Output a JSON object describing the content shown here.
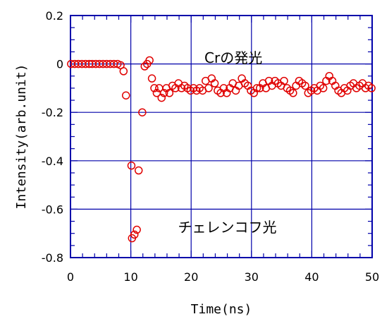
{
  "chart_data": {
    "type": "scatter",
    "xlabel": "Time(ns)",
    "ylabel": "Intensity(arb.unit)",
    "xlim": [
      0,
      50
    ],
    "ylim": [
      -0.8,
      0.2
    ],
    "x_ticks": [
      "0",
      "10",
      "20",
      "30",
      "40",
      "50"
    ],
    "y_ticks": [
      "0.2",
      "0",
      "-0.2",
      "-0.4",
      "-0.6",
      "-0.8"
    ],
    "grid": true,
    "colors": {
      "frame": "#0000aa",
      "points": "#e00000"
    },
    "annotations": [
      {
        "text": "Crの発光",
        "x": 27,
        "y": 0.005
      },
      {
        "text": "チェレンコフ光",
        "x": 26,
        "y": -0.695
      }
    ],
    "series": [
      {
        "x": [
          0.1,
          0.7,
          1.3,
          1.9,
          2.5,
          3.1,
          3.6,
          4.2,
          4.8,
          5.4,
          6.0,
          6.6,
          7.2,
          7.8,
          8.3,
          8.8,
          9.2,
          10.1,
          10.2,
          10.6,
          11.0,
          11.3,
          11.9,
          12.3,
          12.7,
          13.1,
          13.5,
          13.9,
          14.3,
          14.7,
          15.1,
          15.5,
          15.9,
          16.4,
          16.9,
          17.4,
          17.9,
          18.4,
          18.9,
          19.4,
          19.9,
          20.4,
          20.9,
          21.4,
          21.9,
          22.4,
          22.9,
          23.4,
          23.9,
          24.4,
          24.9,
          25.4,
          25.9,
          26.4,
          26.9,
          27.4,
          27.9,
          28.4,
          28.9,
          29.4,
          29.9,
          30.4,
          30.9,
          31.4,
          31.9,
          32.4,
          32.9,
          33.4,
          33.9,
          34.4,
          34.9,
          35.4,
          35.9,
          36.4,
          36.9,
          37.4,
          37.9,
          38.4,
          38.9,
          39.4,
          39.9,
          40.4,
          40.9,
          41.4,
          41.9,
          42.4,
          42.9,
          43.4,
          43.9,
          44.4,
          44.9,
          45.4,
          45.9,
          46.4,
          46.9,
          47.4,
          47.9,
          48.4,
          48.9,
          49.4,
          49.9
        ],
        "values": [
          0,
          0,
          0,
          0,
          0,
          0,
          0,
          0,
          0,
          0,
          0,
          0,
          0,
          0,
          -0.005,
          -0.03,
          -0.13,
          -0.42,
          -0.72,
          -0.705,
          -0.685,
          -0.44,
          -0.2,
          -0.01,
          0,
          0.015,
          -0.06,
          -0.1,
          -0.12,
          -0.1,
          -0.14,
          -0.12,
          -0.1,
          -0.12,
          -0.09,
          -0.1,
          -0.08,
          -0.1,
          -0.09,
          -0.1,
          -0.11,
          -0.1,
          -0.11,
          -0.1,
          -0.11,
          -0.07,
          -0.1,
          -0.06,
          -0.08,
          -0.11,
          -0.12,
          -0.1,
          -0.12,
          -0.1,
          -0.08,
          -0.11,
          -0.09,
          -0.06,
          -0.08,
          -0.09,
          -0.11,
          -0.12,
          -0.1,
          -0.1,
          -0.08,
          -0.1,
          -0.07,
          -0.09,
          -0.07,
          -0.08,
          -0.09,
          -0.07,
          -0.1,
          -0.11,
          -0.12,
          -0.09,
          -0.07,
          -0.08,
          -0.09,
          -0.12,
          -0.11,
          -0.1,
          -0.11,
          -0.09,
          -0.1,
          -0.07,
          -0.05,
          -0.07,
          -0.09,
          -0.11,
          -0.12,
          -0.1,
          -0.11,
          -0.09,
          -0.08,
          -0.1,
          -0.09,
          -0.08,
          -0.1,
          -0.09,
          -0.1
        ]
      }
    ]
  }
}
